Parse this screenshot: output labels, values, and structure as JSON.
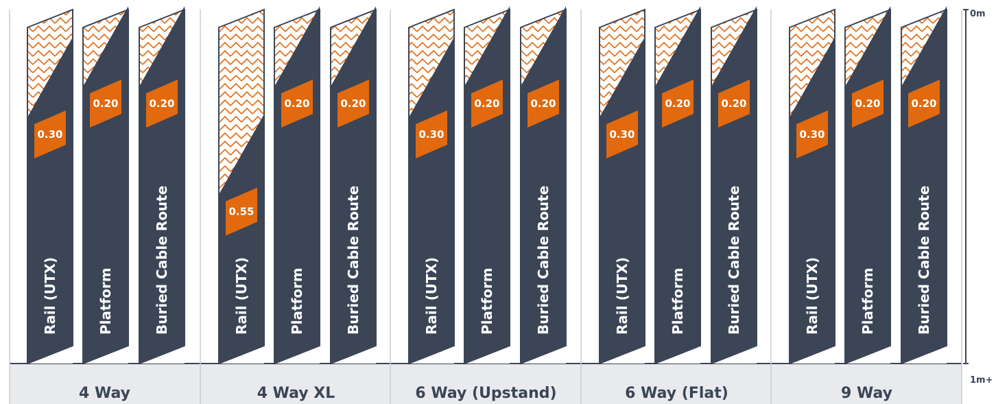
{
  "colors": {
    "dark": "#3b4556",
    "accent": "#e2690e",
    "band": "#e8eaed",
    "divider": "#c8ccd2"
  },
  "chart_data": {
    "type": "bar",
    "title": "",
    "xlabel": "",
    "ylabel": "",
    "y_axis": {
      "top_label": "0m",
      "bottom_label": "1m+",
      "inverted": true,
      "ylim": [
        0,
        1
      ]
    },
    "categories": [
      "4 Way",
      "4 Way XL",
      "6 Way (Upstand)",
      "6 Way (Flat)",
      "9 Way"
    ],
    "series_labels": [
      "Rail  (UTX)",
      "Platform",
      "Buried Cable Route"
    ],
    "groups": [
      {
        "name": "4 Way",
        "bars": [
          {
            "label": "Rail  (UTX)",
            "value": "0.30",
            "depth": 0.3
          },
          {
            "label": "Platform",
            "value": "0.20",
            "depth": 0.2
          },
          {
            "label": "Buried Cable Route",
            "value": "0.20",
            "depth": 0.2
          }
        ]
      },
      {
        "name": "4 Way XL",
        "bars": [
          {
            "label": "Rail  (UTX)",
            "value": "0.55",
            "depth": 0.55
          },
          {
            "label": "Platform",
            "value": "0.20",
            "depth": 0.2
          },
          {
            "label": "Buried Cable Route",
            "value": "0.20",
            "depth": 0.2
          }
        ]
      },
      {
        "name": "6 Way (Upstand)",
        "bars": [
          {
            "label": "Rail  (UTX)",
            "value": "0.30",
            "depth": 0.3
          },
          {
            "label": "Platform",
            "value": "0.20",
            "depth": 0.2
          },
          {
            "label": "Buried Cable Route",
            "value": "0.20",
            "depth": 0.2
          }
        ]
      },
      {
        "name": "6 Way (Flat)",
        "bars": [
          {
            "label": "Rail  (UTX)",
            "value": "0.30",
            "depth": 0.3
          },
          {
            "label": "Platform",
            "value": "0.20",
            "depth": 0.2
          },
          {
            "label": "Buried Cable Route",
            "value": "0.20",
            "depth": 0.2
          }
        ]
      },
      {
        "name": "9 Way",
        "bars": [
          {
            "label": "Rail  (UTX)",
            "value": "0.30",
            "depth": 0.3
          },
          {
            "label": "Platform",
            "value": "0.20",
            "depth": 0.2
          },
          {
            "label": "Buried Cable Route",
            "value": "0.20",
            "depth": 0.2
          }
        ]
      }
    ]
  }
}
